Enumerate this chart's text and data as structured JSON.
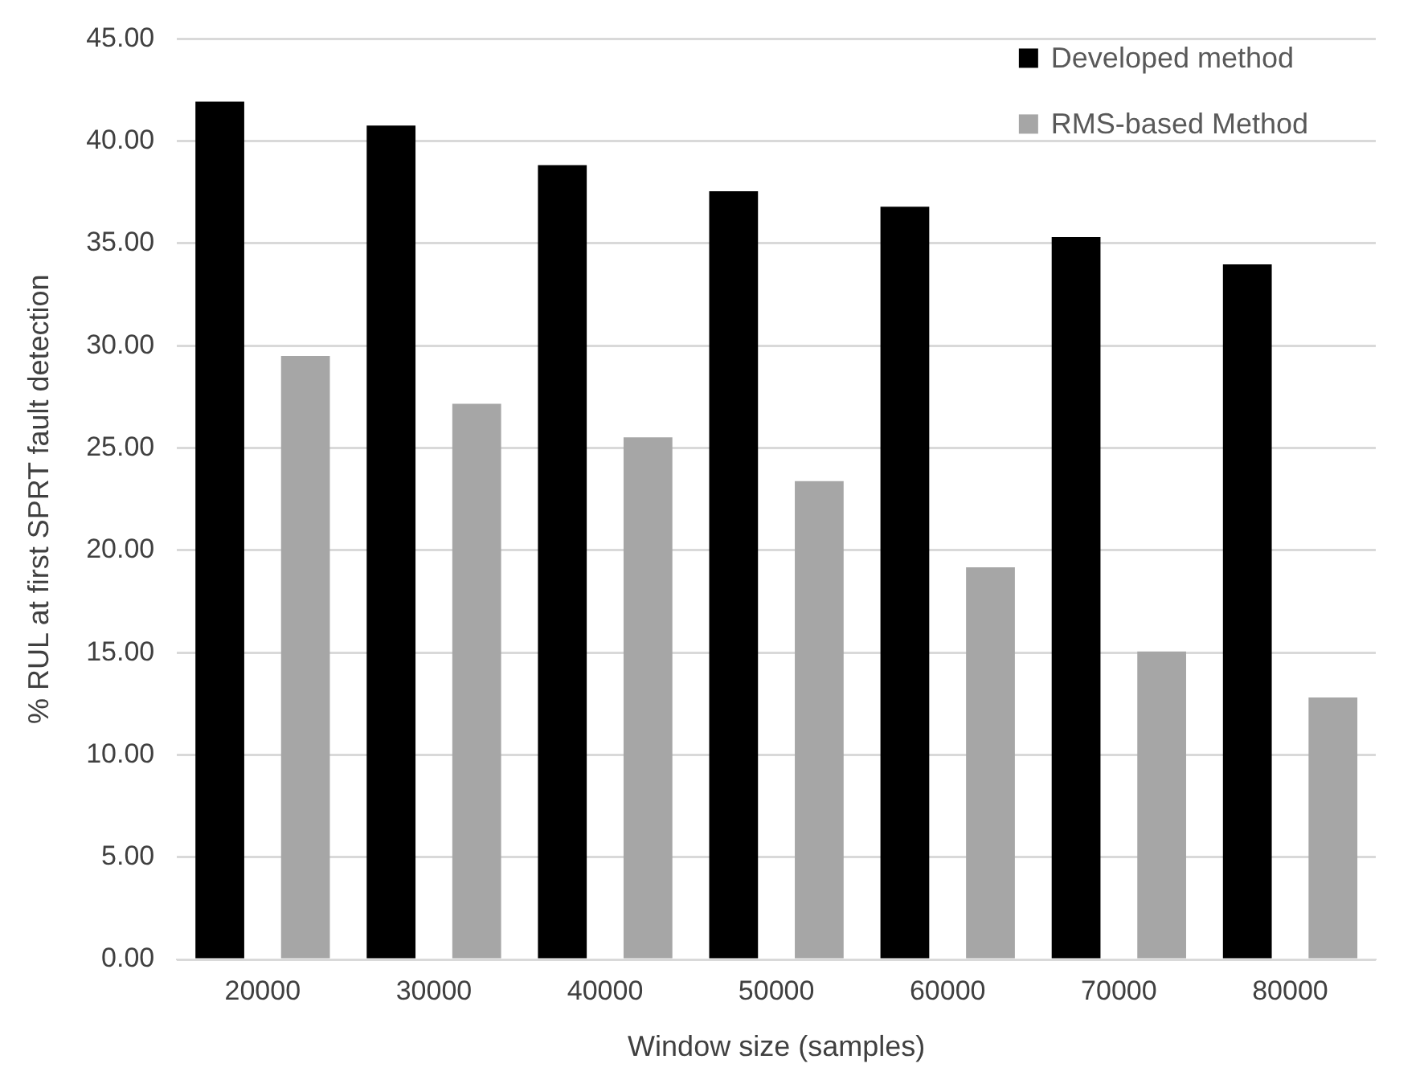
{
  "chart_data": {
    "type": "bar",
    "xlabel": "Window size (samples)",
    "ylabel": "% RUL at first SPRT fault detection",
    "categories": [
      "20000",
      "30000",
      "40000",
      "50000",
      "60000",
      "70000",
      "80000"
    ],
    "series": [
      {
        "name": "Developed method",
        "color": "#000000",
        "values": [
          41.93,
          40.76,
          38.83,
          37.55,
          36.8,
          35.31,
          33.98
        ]
      },
      {
        "name": "RMS-based Method",
        "color": "#a6a6a6",
        "values": [
          29.5,
          27.16,
          25.52,
          23.38,
          19.17,
          15.05,
          12.81
        ]
      }
    ],
    "ylim": [
      0,
      45
    ],
    "yticks": [
      {
        "value": 0,
        "label": "0.00"
      },
      {
        "value": 5,
        "label": "5.00"
      },
      {
        "value": 10,
        "label": "10.00"
      },
      {
        "value": 15,
        "label": "15.00"
      },
      {
        "value": 20,
        "label": "20.00"
      },
      {
        "value": 25,
        "label": "25.00"
      },
      {
        "value": 30,
        "label": "30.00"
      },
      {
        "value": 35,
        "label": "35.00"
      },
      {
        "value": 40,
        "label": "40.00"
      },
      {
        "value": 45,
        "label": "45.00"
      }
    ],
    "grid": "y",
    "legend": "top right"
  }
}
